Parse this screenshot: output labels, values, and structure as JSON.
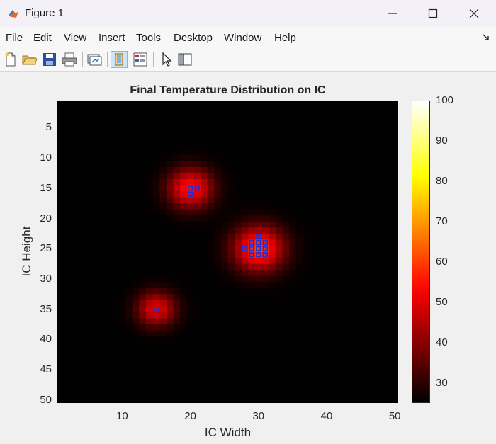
{
  "window": {
    "title": "Figure 1",
    "controls": [
      "minimize",
      "maximize",
      "close"
    ]
  },
  "menu": {
    "items": [
      "File",
      "Edit",
      "View",
      "Insert",
      "Tools",
      "Desktop",
      "Window",
      "Help"
    ]
  },
  "toolbar": {
    "buttons": [
      {
        "icon": "new-figure-icon"
      },
      {
        "icon": "open-file-icon"
      },
      {
        "icon": "save-icon"
      },
      {
        "icon": "print-icon"
      },
      {
        "icon": "link-plot-icon"
      },
      {
        "icon": "dock-icon",
        "active": true
      },
      {
        "icon": "property-inspector-icon"
      },
      {
        "icon": "select-cursor-icon"
      },
      {
        "icon": "panel-icon"
      }
    ]
  },
  "chart_data": {
    "type": "heatmap",
    "title": "Final Temperature Distribution on IC",
    "xlabel": "IC Width",
    "ylabel": "IC Height",
    "grid_size": [
      50,
      50
    ],
    "xlim": [
      0.5,
      50.5
    ],
    "ylim": [
      0.5,
      50.5
    ],
    "y_direction": "reversed",
    "x_ticks": [
      10,
      20,
      30,
      40,
      50
    ],
    "y_ticks": [
      5,
      10,
      15,
      20,
      25,
      30,
      35,
      40,
      45,
      50
    ],
    "colormap": "hot",
    "color_limits": [
      25,
      100
    ],
    "colorbar_ticks": [
      30,
      40,
      50,
      60,
      70,
      80,
      90,
      100
    ],
    "ambient_temperature": 25,
    "heat_sources": [
      {
        "x": 20,
        "y": 15,
        "peak": 55,
        "spread": 2.3
      },
      {
        "x": 30,
        "y": 25,
        "peak": 60,
        "spread": 2.6
      },
      {
        "x": 15,
        "y": 35,
        "peak": 50,
        "spread": 2.0
      }
    ],
    "marker_color": "#1f2fd6",
    "marker_cells": [
      [
        20,
        15
      ],
      [
        21,
        15
      ],
      [
        20,
        16
      ],
      [
        30,
        23
      ],
      [
        29,
        24
      ],
      [
        30,
        24
      ],
      [
        31,
        24
      ],
      [
        28,
        25
      ],
      [
        29,
        25
      ],
      [
        30,
        25
      ],
      [
        31,
        25
      ],
      [
        29,
        26
      ],
      [
        30,
        26
      ],
      [
        31,
        26
      ],
      [
        15,
        35
      ]
    ]
  }
}
